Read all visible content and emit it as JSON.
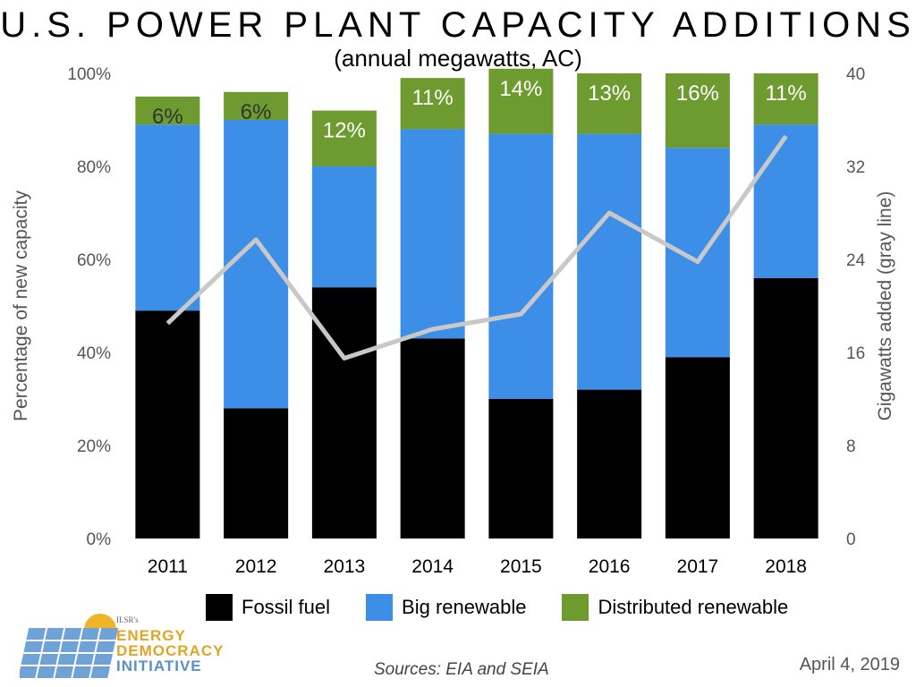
{
  "title": "U.S. POWER PLANT CAPACITY ADDITIONS",
  "subtitle": "(annual megawatts, AC)",
  "chart_data": {
    "type": "bar",
    "stacked": true,
    "categories": [
      "2011",
      "2012",
      "2013",
      "2014",
      "2015",
      "2016",
      "2017",
      "2018"
    ],
    "series": [
      {
        "name": "Fossil fuel",
        "color": "#000000",
        "values": [
          49,
          28,
          54,
          43,
          30,
          32,
          39,
          56
        ]
      },
      {
        "name": "Big renewable",
        "color": "#3d8ee6",
        "values": [
          40,
          62,
          26,
          45,
          57,
          55,
          45,
          33
        ]
      },
      {
        "name": "Distributed renewable",
        "color": "#6e9b2f",
        "values": [
          6,
          6,
          12,
          11,
          14,
          13,
          16,
          11
        ]
      }
    ],
    "bar_labels": [
      "6%",
      "6%",
      "12%",
      "11%",
      "14%",
      "13%",
      "16%",
      "11%"
    ],
    "line": {
      "name": "Gigawatts added (gray line)",
      "color": "#c8c8c8",
      "values": [
        18.5,
        25.7,
        15.5,
        18,
        19.3,
        28,
        23.8,
        34.6
      ]
    },
    "ylabel": "Percentage of new capacity",
    "y2label": "Gigawatts added (gray line)",
    "ylim": [
      0,
      100
    ],
    "y2lim": [
      0,
      40
    ],
    "yticks": [
      "0%",
      "20%",
      "40%",
      "60%",
      "80%",
      "100%"
    ],
    "y2ticks": [
      "0",
      "8",
      "16",
      "24",
      "32",
      "40"
    ],
    "legend_position": "bottom",
    "grid": false
  },
  "logo": {
    "small": "ILSR's",
    "line1": "ENERGY",
    "line2": "DEMOCRACY",
    "line3": "INITIATIVE"
  },
  "sources": "Sources: EIA and SEIA",
  "date": "April 4, 2019"
}
